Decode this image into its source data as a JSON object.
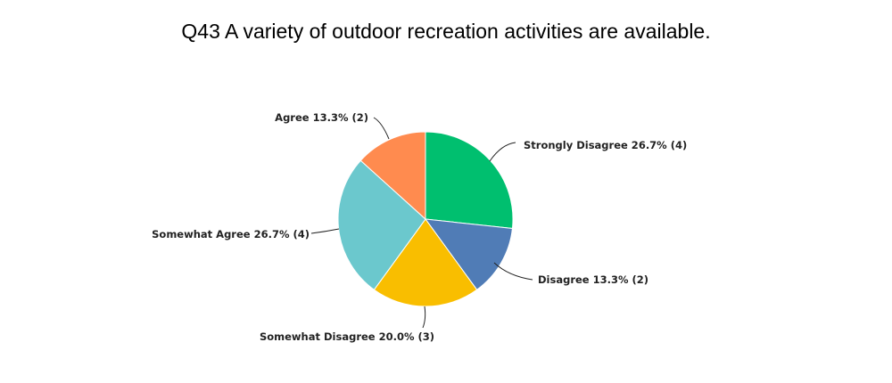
{
  "chart_data": {
    "type": "pie",
    "title": "Q43 A variety of outdoor recreation activities are available.",
    "slices": [
      {
        "label": "Strongly Disagree 26.7% (4)",
        "value": 26.7,
        "count": 4,
        "color": "#00BF6F"
      },
      {
        "label": "Disagree 13.3% (2)",
        "value": 13.3,
        "count": 2,
        "color": "#507CB6"
      },
      {
        "label": "Somewhat Disagree 20.0% (3)",
        "value": 20.0,
        "count": 3,
        "color": "#F9BE00"
      },
      {
        "label": "Somewhat Agree 26.7% (4)",
        "value": 26.7,
        "count": 4,
        "color": "#6BC8CD"
      },
      {
        "label": "Agree 13.3% (2)",
        "value": 13.3,
        "count": 2,
        "color": "#FF8B4F"
      }
    ]
  }
}
